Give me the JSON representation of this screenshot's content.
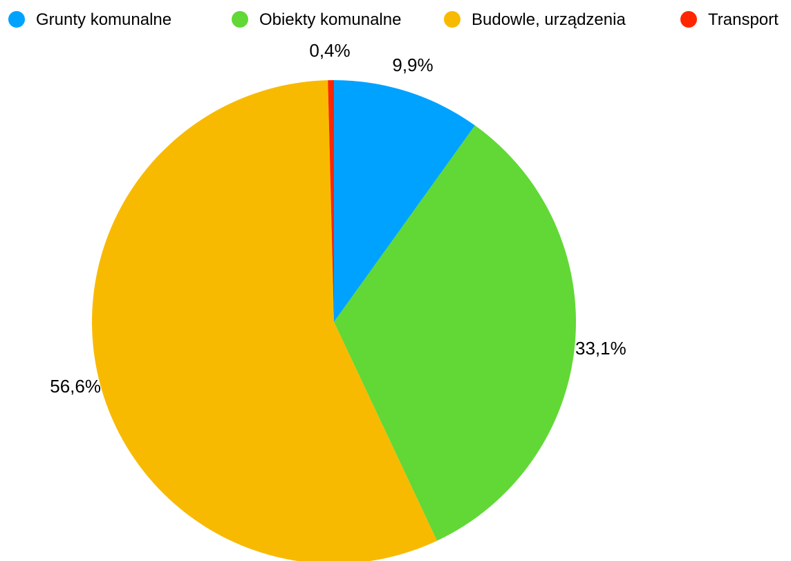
{
  "chart_data": {
    "type": "pie",
    "categories": [
      "Grunty komunalne",
      "Obiekty komunalne",
      "Budowle, urządzenia",
      "Transport"
    ],
    "values": [
      9.9,
      33.1,
      56.6,
      0.4
    ],
    "value_labels": [
      "9,9%",
      "33,1%",
      "56,6%",
      "0,4%"
    ],
    "colors": [
      "#00a2ff",
      "#61d836",
      "#f8ba00",
      "#ff2600"
    ],
    "title": "",
    "legend_position": "top"
  }
}
